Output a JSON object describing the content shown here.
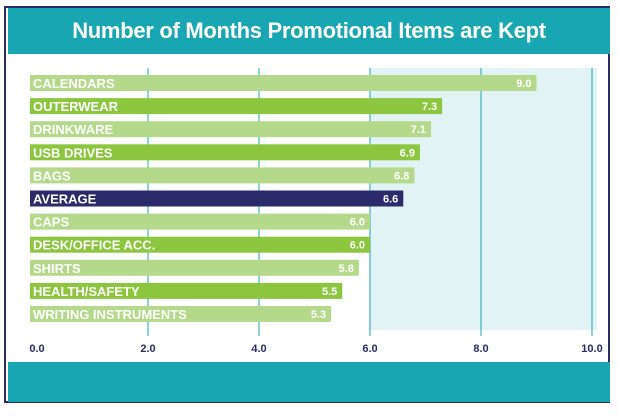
{
  "chart_data": {
    "type": "bar",
    "orientation": "horizontal",
    "title": "Number of Months Promotional Items are Kept",
    "categories": [
      "CALENDARS",
      "OUTERWEAR",
      "DRINKWARE",
      "USB DRIVES",
      "BAGS",
      "AVERAGE",
      "CAPS",
      "DESK/OFFICE ACC.",
      "SHIRTS",
      "HEALTH/SAFETY",
      "WRITING INSTRUMENTS"
    ],
    "values": [
      9.0,
      7.3,
      7.1,
      6.9,
      6.8,
      6.6,
      6.0,
      6.0,
      5.8,
      5.5,
      5.3
    ],
    "value_labels": [
      "9.0",
      "7.3",
      "7.1",
      "6.9",
      "6.8",
      "6.6",
      "6.0",
      "6.0",
      "5.8",
      "5.5",
      "5.3"
    ],
    "xlim": [
      0,
      10
    ],
    "xticks": [
      "0.0",
      "2.0",
      "4.0",
      "6.0",
      "8.0",
      "10.0"
    ],
    "grid": true,
    "colors": {
      "light": "#b5d98b",
      "dark": "#8cc63f",
      "average": "#2b2a6b",
      "header": "#18a6b3",
      "grid": "#18a6b3",
      "plot_bg": "#ffffff",
      "plot_bg_alt": "#e2f3f6"
    },
    "bar_shades": [
      "light",
      "dark",
      "light",
      "dark",
      "light",
      "average",
      "light",
      "dark",
      "light",
      "dark",
      "light"
    ]
  }
}
